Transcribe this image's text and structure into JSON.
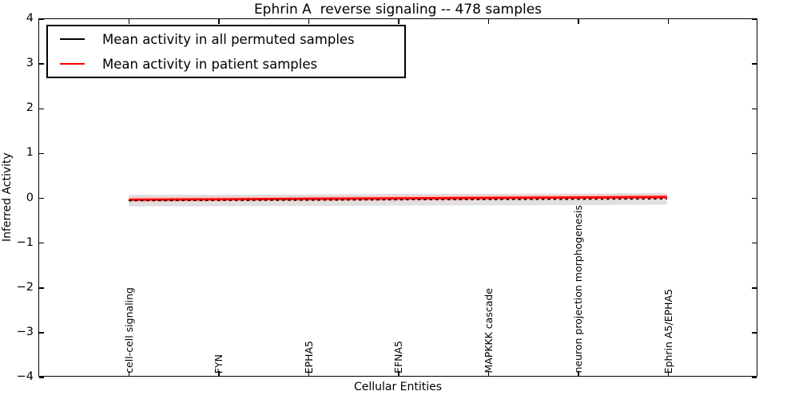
{
  "chart_data": {
    "type": "line",
    "title": "Ephrin A  reverse signaling -- 478 samples",
    "xlabel": "Cellular Entities",
    "ylabel": "Inferred Activity",
    "xlim": [
      -1,
      7
    ],
    "ylim": [
      -4,
      4
    ],
    "grid": false,
    "legend_position": "upper left",
    "yticks": {
      "values": [
        4,
        3,
        2,
        1,
        0,
        -1,
        -2,
        -3,
        -4
      ],
      "labels": [
        "4",
        "3",
        "2",
        "1",
        "0",
        "−1",
        "−2",
        "−3",
        "−4"
      ]
    },
    "categories": [
      "cell-cell signaling",
      "FYN",
      "EPHA5",
      "EFNA5",
      "MAPKKK cascade",
      "neuron projection morphogenesis",
      "Ephrin A5/EPHA5"
    ],
    "series": [
      {
        "name": "Mean activity in all permuted samples",
        "color": "#000000",
        "linestyle": "dotted",
        "values": [
          -0.07,
          -0.065,
          -0.06,
          -0.05,
          -0.045,
          -0.04,
          -0.03
        ],
        "band_halfwidth": 0.13,
        "band_color": "#e0e0e0"
      },
      {
        "name": "Mean activity in patient samples",
        "color": "#ff0000",
        "linestyle": "solid",
        "values": [
          -0.05,
          -0.04,
          -0.03,
          -0.02,
          -0.01,
          0.0,
          0.01
        ],
        "band_halfwidth": 0.055,
        "band_color": "#ffbdbd"
      }
    ],
    "legend": {
      "entries": [
        {
          "label": "Mean activity in all permuted samples",
          "color": "#000000"
        },
        {
          "label": "Mean activity in patient samples",
          "color": "#ff0000"
        }
      ]
    }
  }
}
